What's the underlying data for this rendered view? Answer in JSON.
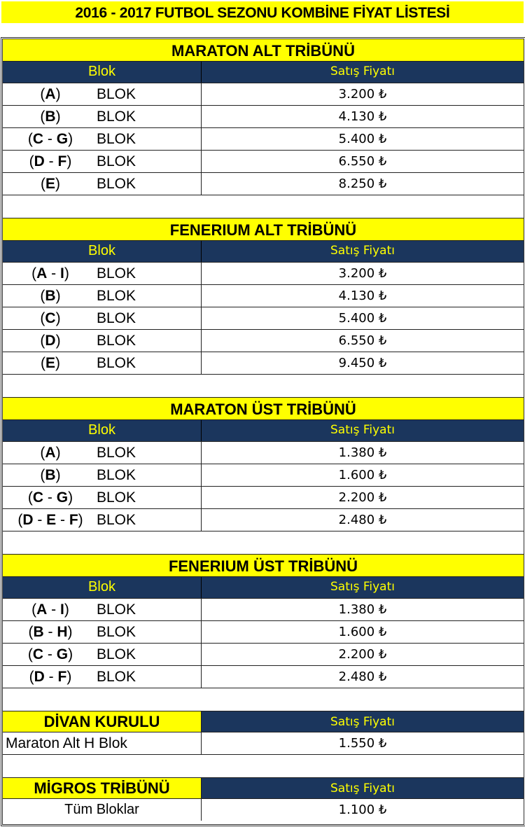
{
  "title": "2016 - 2017 FUTBOL SEZONU KOMBİNE FİYAT LİSTESİ",
  "colors": {
    "yellow": "#ffff00",
    "navy": "#1b365d"
  },
  "column_headers": {
    "block": "Blok",
    "price": "Satış Fiyatı"
  },
  "block_suffix": "BLOK",
  "sections": [
    {
      "title": "MARATON ALT TRİBÜNÜ",
      "rows": [
        {
          "block": "A",
          "price": "3.200 ₺"
        },
        {
          "block": "B",
          "price": "4.130 ₺"
        },
        {
          "block": "C - G",
          "price": "5.400 ₺"
        },
        {
          "block": "D - F",
          "price": "6.550 ₺"
        },
        {
          "block": "E",
          "price": "8.250 ₺"
        }
      ]
    },
    {
      "title": "FENERIUM ALT TRİBÜNÜ",
      "rows": [
        {
          "block": "A - I",
          "price": "3.200 ₺"
        },
        {
          "block": "B",
          "price": "4.130 ₺"
        },
        {
          "block": "C",
          "price": "5.400 ₺"
        },
        {
          "block": "D",
          "price": "6.550 ₺"
        },
        {
          "block": "E",
          "price": "9.450 ₺"
        }
      ]
    },
    {
      "title": "MARATON ÜST TRİBÜNÜ",
      "rows": [
        {
          "block": "A",
          "price": "1.380 ₺"
        },
        {
          "block": "B",
          "price": "1.600 ₺"
        },
        {
          "block": "C - G",
          "price": "2.200 ₺"
        },
        {
          "block": "D - E - F",
          "price": "2.480 ₺"
        }
      ]
    },
    {
      "title": "FENERIUM ÜST TRİBÜNÜ",
      "rows": [
        {
          "block": "A - I",
          "price": "1.380 ₺"
        },
        {
          "block": "B - H",
          "price": "1.600 ₺"
        },
        {
          "block": "C - G",
          "price": "2.200 ₺"
        },
        {
          "block": "D - F",
          "price": "2.480 ₺"
        }
      ]
    }
  ],
  "divan": {
    "title": "DİVAN KURULU",
    "price_header": "Satış Fiyatı",
    "row_label": "Maraton Alt H Blok",
    "price": "1.550 ₺"
  },
  "migros": {
    "title": "MİGROS TRİBÜNÜ",
    "price_header": "Satış Fiyatı",
    "row_label": "Tüm Bloklar",
    "price": "1.100 ₺"
  }
}
